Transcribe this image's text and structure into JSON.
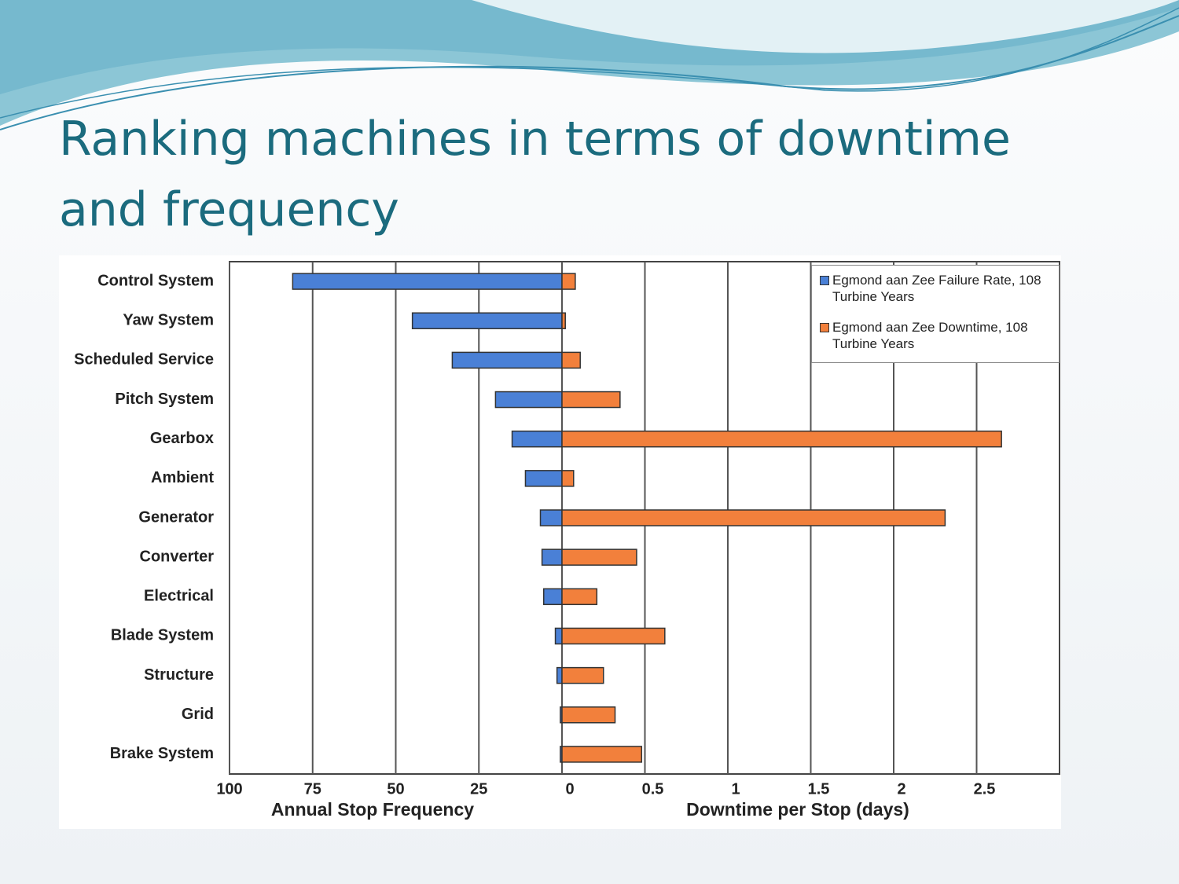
{
  "title": "Ranking machines in terms of downtime and frequency",
  "chart_data": {
    "type": "bar",
    "orientation": "horizontal",
    "categories": [
      "Control System",
      "Yaw System",
      "Scheduled Service",
      "Pitch System",
      "Gearbox",
      "Ambient",
      "Generator",
      "Converter",
      "Electrical",
      "Blade System",
      "Structure",
      "Grid",
      "Brake System"
    ],
    "series": [
      {
        "name": "Egmond aan Zee Failure Rate, 108 Turbine Years",
        "color": "#4a80d6",
        "axis": "x",
        "values": [
          81,
          45,
          33,
          20,
          15,
          11,
          6.5,
          6,
          5.5,
          2,
          1.5,
          0.5,
          0.5
        ]
      },
      {
        "name": "Egmond aan Zee Downtime, 108 Turbine Years",
        "color": "#f2803c",
        "axis": "x2",
        "values": [
          0.08,
          0.02,
          0.11,
          0.35,
          2.65,
          0.07,
          2.31,
          0.45,
          0.21,
          0.62,
          0.25,
          0.32,
          0.48
        ]
      }
    ],
    "xlabel": "Annual Stop Frequency",
    "x2label": "Downtime per Stop (days)",
    "xlim": [
      100,
      0
    ],
    "xticks": [
      100,
      75,
      50,
      25
    ],
    "x2lim": [
      0,
      3
    ],
    "x2ticks": [
      0,
      0.5,
      1,
      1.5,
      2,
      2.5
    ],
    "grid": true,
    "legend": "upper right"
  }
}
